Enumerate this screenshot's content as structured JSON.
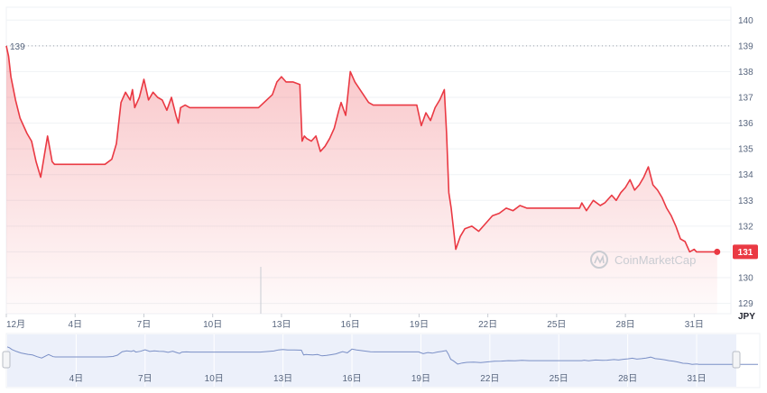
{
  "chart_data": {
    "type": "area",
    "title": "",
    "xlabel": "",
    "ylabel": "",
    "currency_label": "JPY",
    "watermark": "CoinMarketCap",
    "ylim": [
      128.6,
      140.5
    ],
    "xlim": [
      1,
      32.6
    ],
    "y_ticks": [
      129,
      130,
      131,
      132,
      133,
      134,
      135,
      136,
      137,
      138,
      139,
      140
    ],
    "x_tick_labels": [
      {
        "x": 1,
        "label": "12月"
      },
      {
        "x": 4,
        "label": "4日"
      },
      {
        "x": 7,
        "label": "7日"
      },
      {
        "x": 10,
        "label": "10日"
      },
      {
        "x": 13,
        "label": "13日"
      },
      {
        "x": 16,
        "label": "16日"
      },
      {
        "x": 19,
        "label": "19日"
      },
      {
        "x": 22,
        "label": "22日"
      },
      {
        "x": 25,
        "label": "25日"
      },
      {
        "x": 28,
        "label": "28日"
      },
      {
        "x": 31,
        "label": "31日"
      }
    ],
    "reference_value": 139,
    "reference_label": "139",
    "current_value": 131,
    "current_label": "131",
    "line_color": "#ea3943",
    "series": [
      {
        "x": [
          1.0,
          1.1,
          1.2,
          1.4,
          1.6,
          1.9,
          2.1,
          2.3,
          2.5,
          2.8,
          3.0,
          3.1,
          3.3,
          3.5,
          3.7,
          3.8,
          4.0,
          4.3,
          4.8,
          5.3,
          5.6,
          5.8,
          6.0,
          6.2,
          6.4,
          6.5,
          6.6,
          6.8,
          7.0,
          7.2,
          7.4,
          7.6,
          7.8,
          8.0,
          8.2,
          8.4,
          8.5,
          8.6,
          8.8,
          9.0,
          9.2,
          9.4,
          9.6,
          9.8,
          10.2,
          11.0,
          12.0,
          12.6,
          12.8,
          13.0,
          13.2,
          13.5,
          13.8,
          13.9,
          14.0,
          14.1,
          14.3,
          14.5,
          14.7,
          14.9,
          15.1,
          15.3,
          15.5,
          15.6,
          15.8,
          16.0,
          16.2,
          16.5,
          16.8,
          17.0,
          17.3,
          17.6,
          18.0,
          18.5,
          18.9,
          19.0,
          19.1,
          19.3,
          19.5,
          19.7,
          19.9,
          20.1,
          20.2,
          20.3,
          20.4,
          20.6,
          20.8,
          21.0,
          21.3,
          21.6,
          21.9,
          22.2,
          22.5,
          22.8,
          23.1,
          23.4,
          23.7,
          24.0,
          24.5,
          25.0,
          25.5,
          26.0,
          26.1,
          26.3,
          26.6,
          26.9,
          27.1,
          27.4,
          27.6,
          27.8,
          28.0,
          28.2,
          28.4,
          28.6,
          28.8,
          29.0,
          29.2,
          29.4,
          29.6,
          29.8,
          30.0,
          30.2,
          30.4,
          30.6,
          30.8,
          31.0,
          31.1,
          31.3,
          31.6,
          32.0
        ],
        "y": [
          139.0,
          138.6,
          137.8,
          136.9,
          136.2,
          135.6,
          135.3,
          134.5,
          133.9,
          135.5,
          134.5,
          134.4,
          134.4,
          134.4,
          134.4,
          134.4,
          134.4,
          134.4,
          134.4,
          134.4,
          134.6,
          135.2,
          136.8,
          137.2,
          136.9,
          137.3,
          136.6,
          137.0,
          137.7,
          136.9,
          137.2,
          137.0,
          136.9,
          136.5,
          137.0,
          136.3,
          136.0,
          136.6,
          136.7,
          136.6,
          136.6,
          136.6,
          136.6,
          136.6,
          136.6,
          136.6,
          136.6,
          137.1,
          137.6,
          137.8,
          137.6,
          137.6,
          137.5,
          135.3,
          135.5,
          135.4,
          135.3,
          135.5,
          134.9,
          135.1,
          135.4,
          135.8,
          136.5,
          136.8,
          136.3,
          138.0,
          137.6,
          137.2,
          136.8,
          136.7,
          136.7,
          136.7,
          136.7,
          136.7,
          136.7,
          136.3,
          135.9,
          136.4,
          136.1,
          136.6,
          136.9,
          137.3,
          135.6,
          133.3,
          132.7,
          131.1,
          131.6,
          131.9,
          132.0,
          131.8,
          132.1,
          132.4,
          132.5,
          132.7,
          132.6,
          132.8,
          132.7,
          132.7,
          132.7,
          132.7,
          132.7,
          132.7,
          132.9,
          132.6,
          133.0,
          132.8,
          132.9,
          133.2,
          133.0,
          133.3,
          133.5,
          133.8,
          133.4,
          133.6,
          133.9,
          134.3,
          133.6,
          133.4,
          133.1,
          132.7,
          132.4,
          132.0,
          131.5,
          131.4,
          131.0,
          131.1,
          131.0,
          131.0,
          131.0,
          131.0
        ]
      }
    ],
    "navigator": {
      "tick_labels": [
        {
          "x": 4,
          "label": "4日"
        },
        {
          "x": 7,
          "label": "7日"
        },
        {
          "x": 10,
          "label": "10日"
        },
        {
          "x": 13,
          "label": "13日"
        },
        {
          "x": 16,
          "label": "16日"
        },
        {
          "x": 19,
          "label": "19日"
        },
        {
          "x": 22,
          "label": "22日"
        },
        {
          "x": 25,
          "label": "25日"
        },
        {
          "x": 28,
          "label": "28日"
        },
        {
          "x": 31,
          "label": "31日"
        }
      ]
    }
  }
}
